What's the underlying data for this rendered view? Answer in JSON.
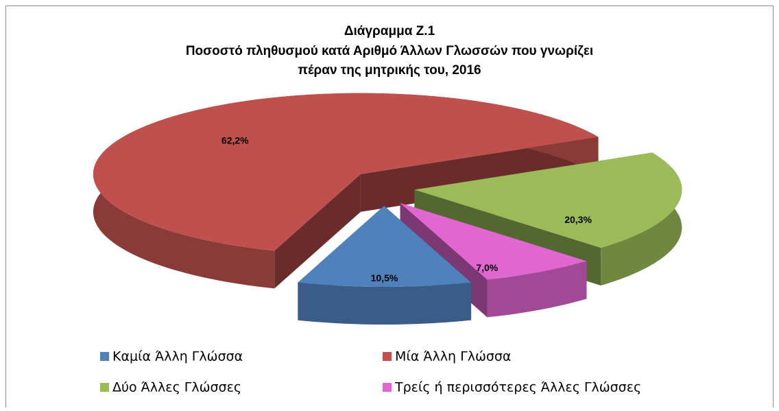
{
  "chart_data": {
    "type": "pie3d",
    "title": [
      "Διάγραμμα Ζ.1",
      "Ποσοστό πληθυσμού κατά Αριθμό Άλλων Γλωσσών που γνωρίζει",
      "πέραν της μητρικής του, 2016"
    ],
    "categories": [
      "Καμία Άλλη Γλώσσα",
      "Μία Άλλη Γλώσσα",
      "Δύο Άλλες Γλώσσες",
      "Τρείς ή περισσότερες Άλλες Γλώσσες"
    ],
    "values": [
      10.5,
      62.2,
      20.3,
      7.0
    ],
    "value_labels": [
      "10,5%",
      "62,2%",
      "20,3%",
      "7,0%"
    ],
    "colors": [
      "#4f81bd",
      "#c0504d",
      "#9bbb59",
      "#e066d0"
    ]
  }
}
